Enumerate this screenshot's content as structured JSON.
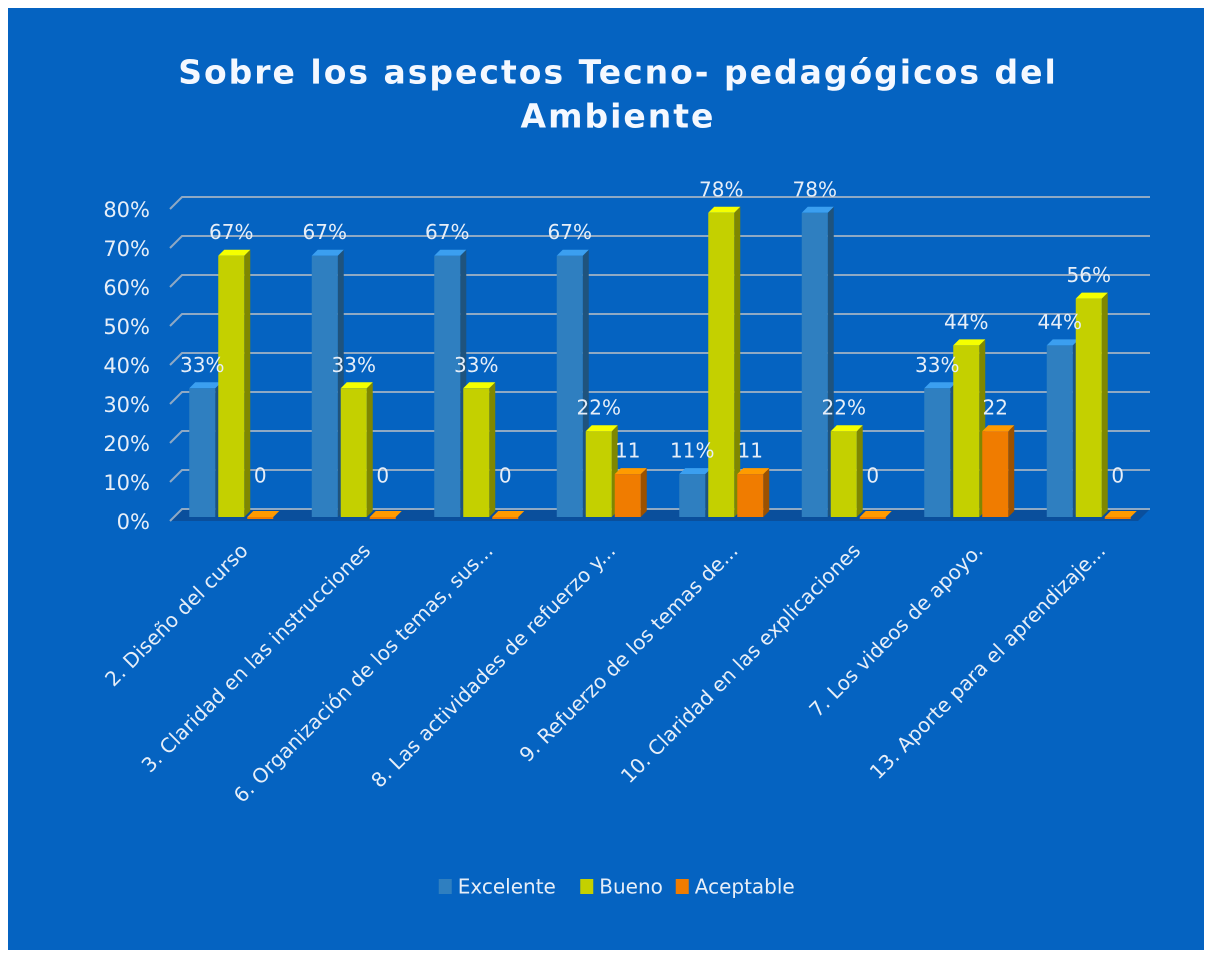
{
  "chart_data": {
    "type": "bar3d",
    "title": [
      "Sobre los aspectos Tecno- pedagógicos del",
      "Ambiente"
    ],
    "categories": [
      "2.  Diseño del curso",
      "3. Claridad en las instrucciones",
      "6. Organización de los temas, sus...",
      "8. Las actividades de refuerzo y...",
      "9. Refuerzo de los temas de...",
      "10. Claridad en las explicaciones",
      "7. Los videos de apoyo.",
      "13. Aporte para el aprendizaje..."
    ],
    "series": [
      {
        "name": "Excelente",
        "color": "#2f7fc0",
        "values": [
          33,
          67,
          67,
          67,
          11,
          78,
          33,
          44
        ],
        "value_labels": [
          "33%",
          "67%",
          "67%",
          "67%",
          "11%",
          "78%",
          "33%",
          "44%"
        ]
      },
      {
        "name": "Bueno",
        "color": "#c4d000",
        "values": [
          67,
          33,
          33,
          22,
          78,
          22,
          44,
          56
        ],
        "value_labels": [
          "67%",
          "33%",
          "33%",
          "22%",
          "78%",
          "22%",
          "44%",
          "56%"
        ]
      },
      {
        "name": "Aceptable",
        "color": "#f07c00",
        "values": [
          0,
          0,
          0,
          11,
          11,
          0,
          22,
          0
        ]
      }
    ],
    "ylim": [
      0,
      80
    ],
    "yticks": [
      {
        "value": 0,
        "label": "0%"
      },
      {
        "value": 10,
        "label": "10%"
      },
      {
        "value": 20,
        "label": "20%"
      },
      {
        "value": 30,
        "label": "30%"
      },
      {
        "value": 40,
        "label": "40%"
      },
      {
        "value": 50,
        "label": "50%"
      },
      {
        "value": 60,
        "label": "60%"
      },
      {
        "value": 70,
        "label": "70%"
      },
      {
        "value": 80,
        "label": "80%"
      }
    ],
    "grid": true,
    "legend": "bottom"
  }
}
